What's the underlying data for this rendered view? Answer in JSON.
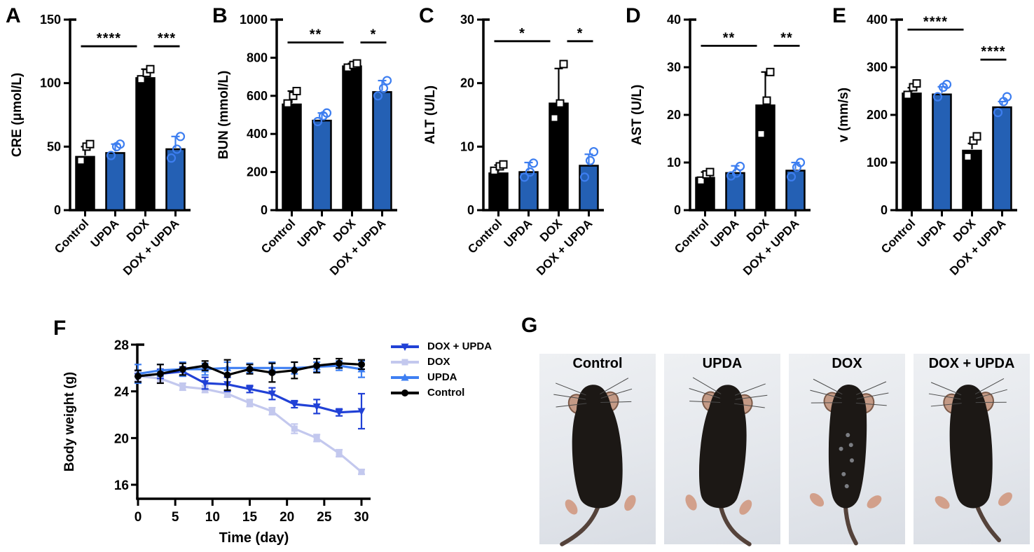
{
  "panels": [
    {
      "letter": "A"
    },
    {
      "letter": "B"
    },
    {
      "letter": "C"
    },
    {
      "letter": "D"
    },
    {
      "letter": "E"
    },
    {
      "letter": "F"
    },
    {
      "letter": "G"
    }
  ],
  "colors": {
    "bar_black": "#000000",
    "bar_blue": "#2460b4",
    "point_blue": "#3d7ef0",
    "line_dox_upda": "#2141d6",
    "line_dox": "#c3c8ee",
    "line_upda": "#3e7ff2",
    "line_control": "#000000"
  },
  "chart_data": [
    {
      "panel": "A",
      "type": "bar",
      "ylabel": "CRE (μmol/L)",
      "categories": [
        "Control",
        "UPDA",
        "DOX",
        "DOX + UPDA"
      ],
      "bar_colors": [
        "black",
        "blue",
        "black",
        "blue"
      ],
      "values": [
        42,
        45,
        104,
        48
      ],
      "errors": [
        8,
        7,
        7,
        10
      ],
      "points": [
        [
          39,
          50,
          52
        ],
        [
          43,
          50,
          52
        ],
        [
          103,
          108,
          111
        ],
        [
          41,
          48,
          58
        ]
      ],
      "ylim": [
        0,
        150
      ],
      "yticks": [
        0,
        50,
        100,
        150
      ],
      "significance": [
        {
          "from": 0,
          "to": 2,
          "label": "****",
          "y": 129
        },
        {
          "from": 2,
          "to": 3,
          "label": "***",
          "y": 129
        }
      ]
    },
    {
      "panel": "B",
      "type": "bar",
      "ylabel": "BUN (mmol/L)",
      "categories": [
        "Control",
        "UPDA",
        "DOX",
        "DOX + UPDA"
      ],
      "bar_colors": [
        "black",
        "blue",
        "black",
        "blue"
      ],
      "values": [
        555,
        470,
        755,
        620
      ],
      "errors": [
        70,
        40,
        15,
        60
      ],
      "points": [
        [
          560,
          600,
          625
        ],
        [
          465,
          495,
          510
        ],
        [
          748,
          762,
          770
        ],
        [
          600,
          640,
          680
        ]
      ],
      "ylim": [
        0,
        1000
      ],
      "yticks": [
        0,
        200,
        400,
        600,
        800,
        1000
      ],
      "significance": [
        {
          "from": 0,
          "to": 2,
          "label": "**",
          "y": 880
        },
        {
          "from": 2,
          "to": 3,
          "label": "*",
          "y": 880
        }
      ]
    },
    {
      "panel": "C",
      "type": "bar",
      "ylabel": "ALT (U/L)",
      "categories": [
        "Control",
        "UPDA",
        "DOX",
        "DOX + UPDA"
      ],
      "bar_colors": [
        "black",
        "blue",
        "black",
        "blue"
      ],
      "values": [
        5.8,
        6,
        16.8,
        7
      ],
      "errors": [
        1.3,
        1.5,
        5.5,
        1.8
      ],
      "points": [
        [
          6.2,
          6.9,
          7.2
        ],
        [
          5.2,
          6,
          7.4
        ],
        [
          14.5,
          16.8,
          23
        ],
        [
          5.2,
          7.8,
          9.2
        ]
      ],
      "ylim": [
        0,
        30
      ],
      "yticks": [
        0,
        10,
        20,
        30
      ],
      "significance": [
        {
          "from": 0,
          "to": 2,
          "label": "*",
          "y": 26.6
        },
        {
          "from": 2,
          "to": 3,
          "label": "*",
          "y": 26.6
        }
      ]
    },
    {
      "panel": "D",
      "type": "bar",
      "ylabel": "AST (U/L)",
      "categories": [
        "Control",
        "UPDA",
        "DOX",
        "DOX + UPDA"
      ],
      "bar_colors": [
        "black",
        "blue",
        "black",
        "blue"
      ],
      "values": [
        6.8,
        7.8,
        22,
        8.3
      ],
      "errors": [
        1.2,
        1.5,
        7,
        1.7
      ],
      "points": [
        [
          6.2,
          7.5,
          8
        ],
        [
          7.2,
          7.8,
          9.2
        ],
        [
          16,
          23,
          29
        ],
        [
          7,
          9,
          10
        ]
      ],
      "ylim": [
        0,
        40
      ],
      "yticks": [
        0,
        10,
        20,
        30,
        40
      ],
      "significance": [
        {
          "from": 0,
          "to": 2,
          "label": "**",
          "y": 34.5
        },
        {
          "from": 2,
          "to": 3,
          "label": "**",
          "y": 34.5
        }
      ]
    },
    {
      "panel": "E",
      "type": "bar",
      "ylabel": "v (mm/s)",
      "categories": [
        "Control",
        "UPDA",
        "DOX",
        "DOX + UPDA"
      ],
      "bar_colors": [
        "black",
        "blue",
        "black",
        "blue"
      ],
      "values": [
        245,
        243,
        125,
        216
      ],
      "errors": [
        12,
        16,
        15,
        12
      ],
      "points": [
        [
          242,
          258,
          266
        ],
        [
          238,
          258,
          264
        ],
        [
          112,
          146,
          155
        ],
        [
          205,
          228,
          238
        ]
      ],
      "ylim": [
        0,
        400
      ],
      "yticks": [
        0,
        100,
        200,
        300,
        400
      ],
      "significance": [
        {
          "from": 0,
          "to": 2,
          "label": "****",
          "y": 379
        },
        {
          "from": 2,
          "to": 3,
          "label": "****",
          "y": 316
        }
      ]
    },
    {
      "panel": "F",
      "type": "line",
      "xlabel": "Time (day)",
      "ylabel": "Body weight (g)",
      "x": [
        0,
        3,
        6,
        9,
        12,
        15,
        18,
        21,
        24,
        27,
        30
      ],
      "xticks": [
        0,
        5,
        10,
        15,
        20,
        25,
        30
      ],
      "ylim": [
        16,
        28
      ],
      "yticks": [
        16,
        20,
        24,
        28
      ],
      "legend_position": "right-top",
      "series": [
        {
          "name": "DOX + UPDA",
          "marker": "triangle-down",
          "color": "#2141d6",
          "values": [
            25.3,
            25.5,
            25.7,
            24.7,
            24.6,
            24.2,
            23.8,
            22.9,
            22.7,
            22.2,
            22.3
          ],
          "errors": [
            0.5,
            0.4,
            0.4,
            0.5,
            0.6,
            0.3,
            0.5,
            0.3,
            0.6,
            0.3,
            1.5
          ]
        },
        {
          "name": "DOX",
          "marker": "square",
          "color": "#c3c8ee",
          "values": [
            25.3,
            25.1,
            24.4,
            24.2,
            23.8,
            23,
            22.3,
            20.8,
            20,
            18.7,
            17.1
          ],
          "errors": [
            0.4,
            0.3,
            0.3,
            0.3,
            0.3,
            0.3,
            0.3,
            0.4,
            0.3,
            0.3,
            0.2
          ]
        },
        {
          "name": "UPDA",
          "marker": "triangle-up",
          "color": "#3e7ff2",
          "values": [
            25.5,
            25.8,
            25.9,
            25.9,
            26,
            26,
            26,
            26,
            26.1,
            26.2,
            25.9
          ],
          "errors": [
            0.8,
            0.5,
            0.6,
            0.5,
            0.5,
            0.4,
            0.5,
            0.5,
            0.4,
            0.4,
            0.7
          ]
        },
        {
          "name": "Control",
          "marker": "circle",
          "color": "#000000",
          "values": [
            25.3,
            25.5,
            25.9,
            26.2,
            25.4,
            25.9,
            25.6,
            25.8,
            26.2,
            26.4,
            26.3
          ],
          "errors": [
            0.5,
            0.8,
            0.5,
            0.4,
            1.3,
            0.4,
            0.8,
            0.7,
            0.6,
            0.4,
            0.4
          ]
        }
      ]
    }
  ],
  "photos": {
    "labels": [
      "Control",
      "UPDA",
      "DOX",
      "DOX + UPDA"
    ]
  }
}
